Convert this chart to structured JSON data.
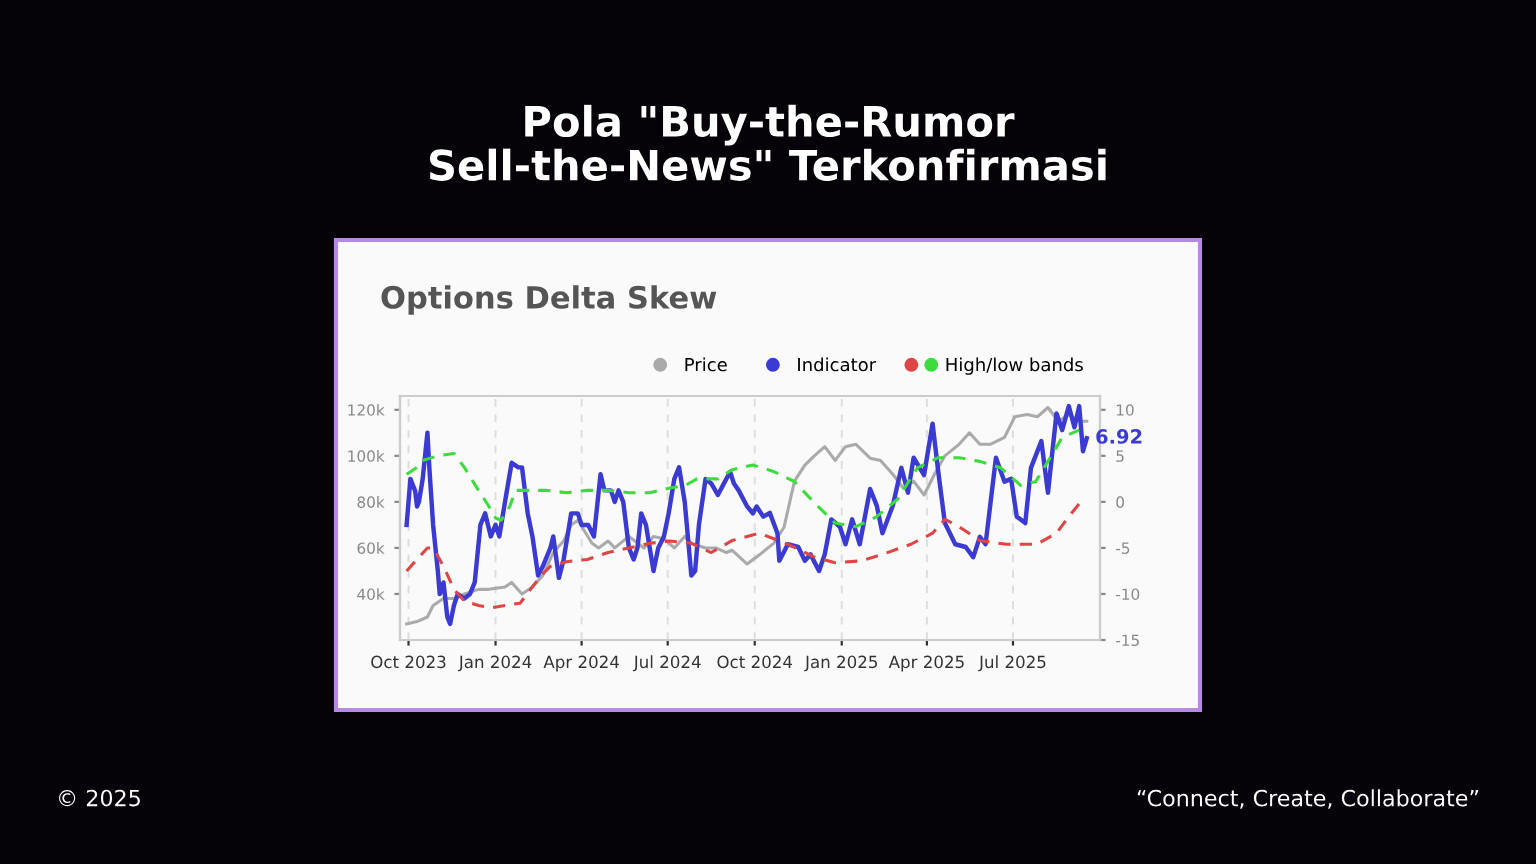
{
  "chart_data": {
    "type": "line",
    "title": "Pola \"Buy-the-Rumor\nSell-the-News\" Terkonfirmasi",
    "subtitle": "Options Delta Skew",
    "xlim": [
      "2023-09-22",
      "2025-10-01"
    ],
    "xticks": [
      {
        "value": "2023-10-01",
        "label": "Oct 2023"
      },
      {
        "value": "2024-01-01",
        "label": "Jan 2024"
      },
      {
        "value": "2024-04-01",
        "label": "Apr 2024"
      },
      {
        "value": "2024-07-01",
        "label": "Jul 2024"
      },
      {
        "value": "2024-10-01",
        "label": "Oct 2024"
      },
      {
        "value": "2025-01-01",
        "label": "Jan 2025"
      },
      {
        "value": "2025-04-01",
        "label": "Apr 2025"
      },
      {
        "value": "2025-07-01",
        "label": "Jul 2025"
      }
    ],
    "ylim": [
      20000,
      126000
    ],
    "yticks": [
      {
        "value": 40000,
        "label": "40k"
      },
      {
        "value": 60000,
        "label": "60k"
      },
      {
        "value": 80000,
        "label": "80k"
      },
      {
        "value": 100000,
        "label": "100k"
      },
      {
        "value": 120000,
        "label": "120k"
      }
    ],
    "y2lim": [
      -15,
      11.5
    ],
    "y2ticks": [
      -15,
      -10,
      -5,
      0,
      5,
      10
    ],
    "grid": "x",
    "legend": "top right",
    "series": [
      {
        "name": "Price",
        "color": "#aaaaaa",
        "line_style": "solid",
        "x": [
          "2023-09-29",
          "2023-10-10",
          "2023-10-21",
          "2023-10-27",
          "2023-11-07",
          "2023-11-18",
          "2023-11-29",
          "2023-12-14",
          "2023-12-25",
          "2024-01-11",
          "2024-01-18",
          "2024-01-29",
          "2024-02-09",
          "2024-02-20",
          "2024-03-02",
          "2024-03-13",
          "2024-03-21",
          "2024-03-28",
          "2024-04-03",
          "2024-04-12",
          "2024-04-19",
          "2024-04-29",
          "2024-05-06",
          "2024-05-21",
          "2024-06-06",
          "2024-06-16",
          "2024-06-27",
          "2024-07-08",
          "2024-07-19",
          "2024-07-26",
          "2024-08-10",
          "2024-08-21",
          "2024-09-01",
          "2024-09-07",
          "2024-09-23",
          "2024-10-06",
          "2024-10-21",
          "2024-11-01",
          "2024-11-12",
          "2024-11-23",
          "2024-12-03",
          "2024-12-14",
          "2024-12-25",
          "2025-01-05",
          "2025-01-16",
          "2025-01-31",
          "2025-02-11",
          "2025-02-24",
          "2025-03-07",
          "2025-03-18",
          "2025-03-29",
          "2025-04-09",
          "2025-04-20",
          "2025-05-05",
          "2025-05-16",
          "2025-05-27",
          "2025-06-07",
          "2025-06-22",
          "2025-07-03",
          "2025-07-16",
          "2025-07-27",
          "2025-08-07",
          "2025-08-18",
          "2025-08-29",
          "2025-09-09",
          "2025-09-17"
        ],
        "values": [
          27000,
          28000,
          30000,
          35000,
          38000,
          38000,
          40000,
          42000,
          42000,
          43000,
          45000,
          40000,
          43000,
          48000,
          58000,
          63000,
          70000,
          72000,
          68000,
          62000,
          60000,
          63000,
          60000,
          65000,
          60000,
          65000,
          64000,
          60000,
          65000,
          62000,
          60000,
          60000,
          58000,
          59000,
          53000,
          57000,
          62000,
          69000,
          89000,
          96000,
          100000,
          104000,
          98000,
          104000,
          105000,
          99000,
          98000,
          92000,
          86000,
          89000,
          83000,
          92000,
          100000,
          105000,
          110000,
          105000,
          105000,
          108000,
          117000,
          118000,
          117000,
          121000,
          115000,
          118000,
          115000,
          115000
        ]
      },
      {
        "name": "Indicator",
        "color": "#3b3bd4",
        "line_style": "solid",
        "axis": "y2",
        "x": [
          "2023-09-29",
          "2023-10-03",
          "2023-10-08",
          "2023-10-10",
          "2023-10-12",
          "2023-10-16",
          "2023-10-21",
          "2023-10-23",
          "2023-10-27",
          "2023-11-01",
          "2023-11-03",
          "2023-11-07",
          "2023-11-11",
          "2023-11-14",
          "2023-11-18",
          "2023-11-22",
          "2023-11-29",
          "2023-12-05",
          "2023-12-10",
          "2023-12-16",
          "2023-12-21",
          "2023-12-27",
          "2024-01-01",
          "2024-01-05",
          "2024-01-11",
          "2024-01-18",
          "2024-01-25",
          "2024-01-29",
          "2024-02-04",
          "2024-02-09",
          "2024-02-15",
          "2024-02-20",
          "2024-02-28",
          "2024-03-02",
          "2024-03-08",
          "2024-03-13",
          "2024-03-21",
          "2024-03-28",
          "2024-04-01",
          "2024-04-08",
          "2024-04-14",
          "2024-04-21",
          "2024-04-25",
          "2024-05-02",
          "2024-05-06",
          "2024-05-10",
          "2024-05-15",
          "2024-05-21",
          "2024-05-26",
          "2024-05-30",
          "2024-06-03",
          "2024-06-08",
          "2024-06-16",
          "2024-06-21",
          "2024-06-27",
          "2024-07-02",
          "2024-07-08",
          "2024-07-13",
          "2024-07-19",
          "2024-07-26",
          "2024-07-30",
          "2024-08-03",
          "2024-08-10",
          "2024-08-16",
          "2024-08-23",
          "2024-09-01",
          "2024-09-05",
          "2024-09-09",
          "2024-09-14",
          "2024-09-23",
          "2024-09-29",
          "2024-10-03",
          "2024-10-10",
          "2024-10-17",
          "2024-10-25",
          "2024-10-27",
          "2024-11-05",
          "2024-11-16",
          "2024-11-23",
          "2024-11-29",
          "2024-12-08",
          "2024-12-14",
          "2024-12-21",
          "2024-12-30",
          "2025-01-05",
          "2025-01-12",
          "2025-01-20",
          "2025-01-31",
          "2025-02-07",
          "2025-02-13",
          "2025-02-24",
          "2025-03-05",
          "2025-03-12",
          "2025-03-18",
          "2025-03-29",
          "2025-04-07",
          "2025-04-13",
          "2025-04-20",
          "2025-05-01",
          "2025-05-12",
          "2025-05-20",
          "2025-05-27",
          "2025-06-02",
          "2025-06-13",
          "2025-06-22",
          "2025-06-29",
          "2025-07-05",
          "2025-07-14",
          "2025-07-20",
          "2025-07-31",
          "2025-08-07",
          "2025-08-16",
          "2025-08-22",
          "2025-08-29",
          "2025-09-04",
          "2025-09-09",
          "2025-09-13",
          "2025-09-17"
        ],
        "values": [
          -2.5,
          2.5,
          1.2,
          -0.5,
          0,
          2.5,
          7.5,
          3.75,
          -2.5,
          -7.5,
          -10,
          -8.75,
          -12.5,
          -13.25,
          -11.25,
          -10,
          -10.5,
          -10,
          -8.75,
          -2.5,
          -1.25,
          -3.75,
          -2.5,
          -3.75,
          0,
          4.25,
          3.75,
          3.75,
          -1.25,
          -3.75,
          -8,
          -7,
          -5,
          -3.75,
          -8.25,
          -6.25,
          -1.25,
          -1.25,
          -2.5,
          -2.5,
          -3.75,
          3,
          1.25,
          1.25,
          0,
          1.25,
          0,
          -5,
          -6.25,
          -5,
          -1.25,
          -2.5,
          -7.5,
          -5,
          -3.75,
          -1.25,
          2.5,
          3.75,
          0,
          -8,
          -7.5,
          -2.5,
          2.5,
          2,
          0.75,
          2.5,
          3.25,
          2,
          1.25,
          -0.5,
          -1.25,
          -0.5,
          -1.6,
          -1.2,
          -3.4,
          -6.4,
          -4.6,
          -4.9,
          -6.4,
          -5.7,
          -7.5,
          -5.7,
          -1.9,
          -2.7,
          -4.6,
          -1.9,
          -4.6,
          1.4,
          -0.4,
          -3.4,
          -0.4,
          3.7,
          1,
          4.8,
          2.9,
          8.5,
          3.3,
          -2.3,
          -4.6,
          -4.9,
          -6,
          -3.8,
          -4.6,
          4.8,
          2.2,
          2.5,
          -1.6,
          -2.3,
          3.7,
          6.6,
          1,
          9.6,
          7.8,
          10.4,
          8.1,
          10.4,
          5.5,
          6.92
        ]
      },
      {
        "name": "High/low bands",
        "color": "#3ddc3d",
        "line_style": "dashed",
        "axis": "y2",
        "x": [
          "2023-09-29",
          "2023-10-10",
          "2023-10-16",
          "2023-11-01",
          "2023-11-18",
          "2023-11-29",
          "2023-12-14",
          "2023-12-25",
          "2024-01-01",
          "2024-01-07",
          "2024-01-16",
          "2024-01-22",
          "2024-02-02",
          "2024-02-24",
          "2024-03-16",
          "2024-04-07",
          "2024-04-29",
          "2024-05-21",
          "2024-06-12",
          "2024-07-03",
          "2024-07-19",
          "2024-08-01",
          "2024-08-23",
          "2024-09-07",
          "2024-09-29",
          "2024-10-21",
          "2024-11-12",
          "2024-12-03",
          "2024-12-25",
          "2025-01-16",
          "2025-02-07",
          "2025-03-01",
          "2025-03-22",
          "2025-04-13",
          "2025-05-05",
          "2025-05-27",
          "2025-06-18",
          "2025-07-09",
          "2025-07-25",
          "2025-08-07",
          "2025-08-22",
          "2025-09-09"
        ],
        "values": [
          3,
          3.75,
          4.5,
          5,
          5.25,
          3.75,
          1.25,
          -0.5,
          -1.75,
          -2,
          -0.5,
          1.25,
          1.25,
          1.25,
          1,
          1.25,
          1.25,
          1,
          1,
          1.5,
          1.75,
          2.5,
          2.5,
          3.5,
          4,
          3.3,
          2.2,
          -0.1,
          -2.3,
          -2.7,
          -1.6,
          0.3,
          3.7,
          4.8,
          4.8,
          4.4,
          3.7,
          1.8,
          2.2,
          4.4,
          7,
          7.8
        ]
      },
      {
        "color": "#e04545",
        "line_style": "dashed",
        "axis": "y2",
        "x": [
          "2023-09-29",
          "2023-10-10",
          "2023-10-21",
          "2023-10-27",
          "2023-11-07",
          "2023-11-18",
          "2023-11-29",
          "2023-12-14",
          "2023-12-27",
          "2024-01-11",
          "2024-01-27",
          "2024-02-07",
          "2024-02-18",
          "2024-02-28",
          "2024-03-16",
          "2024-04-07",
          "2024-04-29",
          "2024-05-21",
          "2024-06-12",
          "2024-07-03",
          "2024-07-26",
          "2024-08-16",
          "2024-09-07",
          "2024-10-06",
          "2024-11-05",
          "2024-12-03",
          "2024-12-25",
          "2025-01-22",
          "2025-02-13",
          "2025-03-15",
          "2025-04-07",
          "2025-04-20",
          "2025-05-05",
          "2025-05-27",
          "2025-06-24",
          "2025-07-26",
          "2025-08-16",
          "2025-08-29",
          "2025-09-13"
        ],
        "values": [
          -7.5,
          -6.25,
          -5,
          -5,
          -7,
          -9.5,
          -10.75,
          -11.25,
          -11.5,
          -11.25,
          -11,
          -9.5,
          -8,
          -7,
          -6.5,
          -6.25,
          -5.5,
          -5,
          -4.5,
          -4.25,
          -4.5,
          -5.5,
          -4.2,
          -3.4,
          -4.6,
          -6,
          -6.6,
          -6.4,
          -5.7,
          -4.6,
          -3.4,
          -1.9,
          -2.7,
          -4.2,
          -4.6,
          -4.6,
          -3.4,
          -1.6,
          0.3
        ]
      }
    ],
    "annotations": [
      "© 2025",
      "“Connect, Create, Collaborate”",
      "6.92"
    ]
  }
}
